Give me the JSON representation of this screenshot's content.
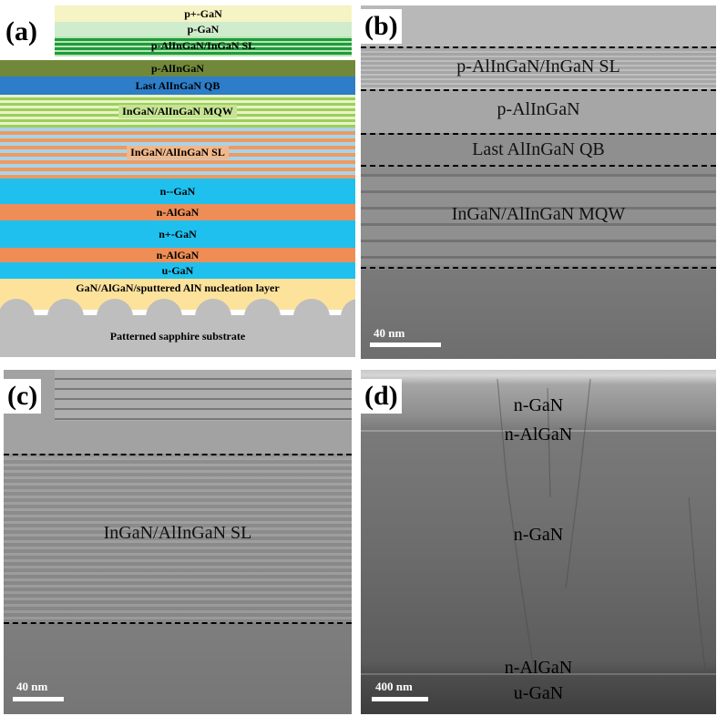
{
  "panels": {
    "a": {
      "label": "(a)",
      "layers": [
        {
          "text": "p+-GaN"
        },
        {
          "text": "p-GaN"
        },
        {
          "text": "p-AlInGaN/InGaN SL"
        },
        {
          "text": "p-AlInGaN"
        },
        {
          "text": "Last AlInGaN QB"
        },
        {
          "text": "InGaN/AlInGaN MQW"
        },
        {
          "text": "InGaN/AlInGaN SL"
        },
        {
          "text": "n--GaN"
        },
        {
          "text": "n-AlGaN"
        },
        {
          "text": "n+-GaN"
        },
        {
          "text": "n-AlGaN"
        },
        {
          "text": "u-GaN"
        },
        {
          "text": "GaN/AlGaN/sputtered AlN nucleation layer"
        },
        {
          "text": "Patterned sapphire substrate"
        }
      ],
      "colors": {
        "p_plus_gan": "#f6f3c4",
        "p_gan": "#cfeccc",
        "sl_light": "#b8e6b0",
        "sl_dark": "#1f9a3f",
        "p_alingan": "#71883a",
        "last_qb": "#2d7dc8",
        "mqw_green": "#9ccf5a",
        "mqw_light": "#e8f3c8",
        "sl_orange": "#ee9a60",
        "sl_blue": "#a7d4ea",
        "n_gan_blue": "#1fc0ee",
        "n_algan_orange": "#ee8e56",
        "nucleation": "#fde29c",
        "sapphire": "#bebebe"
      }
    },
    "b": {
      "label": "(b)",
      "labels": [
        "p-AlInGaN/InGaN SL",
        "p-AlInGaN",
        "Last AlInGaN QB",
        "InGaN/AlInGaN MQW"
      ],
      "scale": "40 nm"
    },
    "c": {
      "label": "(c)",
      "labels": [
        "InGaN/AlInGaN SL"
      ],
      "scale": "40 nm"
    },
    "d": {
      "label": "(d)",
      "labels": [
        "n-GaN",
        "n-AlGaN",
        "n-GaN",
        "n-AlGaN",
        "u-GaN"
      ],
      "scale": "400 nm"
    }
  }
}
